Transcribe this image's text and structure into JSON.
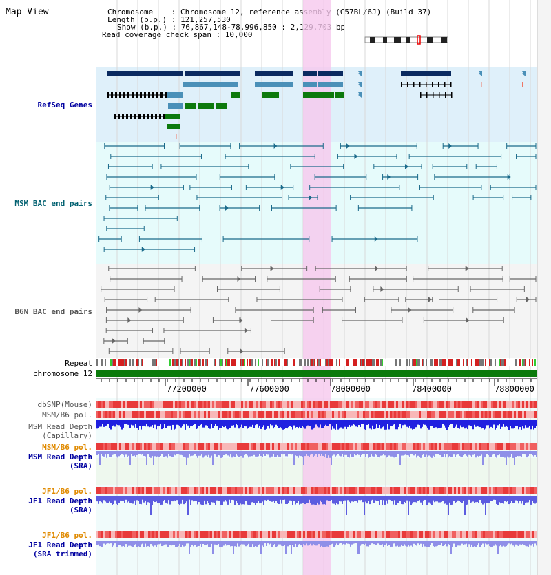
{
  "view_title": "Map View",
  "info": {
    "line1": "Chromosome    : Chromosome 12, reference assembly (C57BL/6J) (Build 37)",
    "line2": "Length (b.p.) : 121,257,530",
    "line3": "Show (b.p.) : 76,867,148-78,996,850 : 2,129,703 bp",
    "line4": "Read coverage check span : 10,000"
  },
  "tracks": {
    "refseq": "RefSeq Genes",
    "msm_bac": "MSM BAC end pairs",
    "b6n_bac": "B6N BAC end pairs",
    "repeat": "Repeat",
    "chromosome": "chromosome 12",
    "dbsnp": "dbSNP(Mouse)",
    "msm_b6_pol": "MSM/B6 pol.",
    "msm_read_depth_cap_1": "MSM Read Depth",
    "msm_read_depth_cap_2": "(Capillary)",
    "msm_b6_pol_2": "MSM/B6 pol.",
    "msm_read_depth_sra_1": "MSM Read Depth",
    "msm_read_depth_sra_2": "(SRA)",
    "jf1_b6_pol": "JF1/B6 pol.",
    "jf1_read_depth_sra_1": "JF1 Read Depth",
    "jf1_read_depth_sra_2": "(SRA)",
    "jf1_b6_pol_2": "JF1/B6 pol.",
    "jf1_read_depth_trim_1": "JF1 Read Depth",
    "jf1_read_depth_trim_2": "(SRA trimmed)"
  },
  "axis_ticks": [
    "77200000",
    "77600000",
    "78000000",
    "78400000",
    "78800000"
  ],
  "colors": {
    "refseq_bg": "#dff0fa",
    "msm_bg": "#e6fbfb",
    "b6n_bg": "#f4f4f4",
    "highlight": "#f6c8ee",
    "gene_dark": "#0a2a60",
    "gene_mid": "#4a90b8",
    "gene_green": "#0d7a0d",
    "msm_pair": "#1a6a8a",
    "b6n_pair": "#666666",
    "chrom_green": "#0b7a0b",
    "label_blue": "#0000a0",
    "label_orange": "#e08a00",
    "label_teal": "#006070",
    "label_grey": "#555555"
  }
}
